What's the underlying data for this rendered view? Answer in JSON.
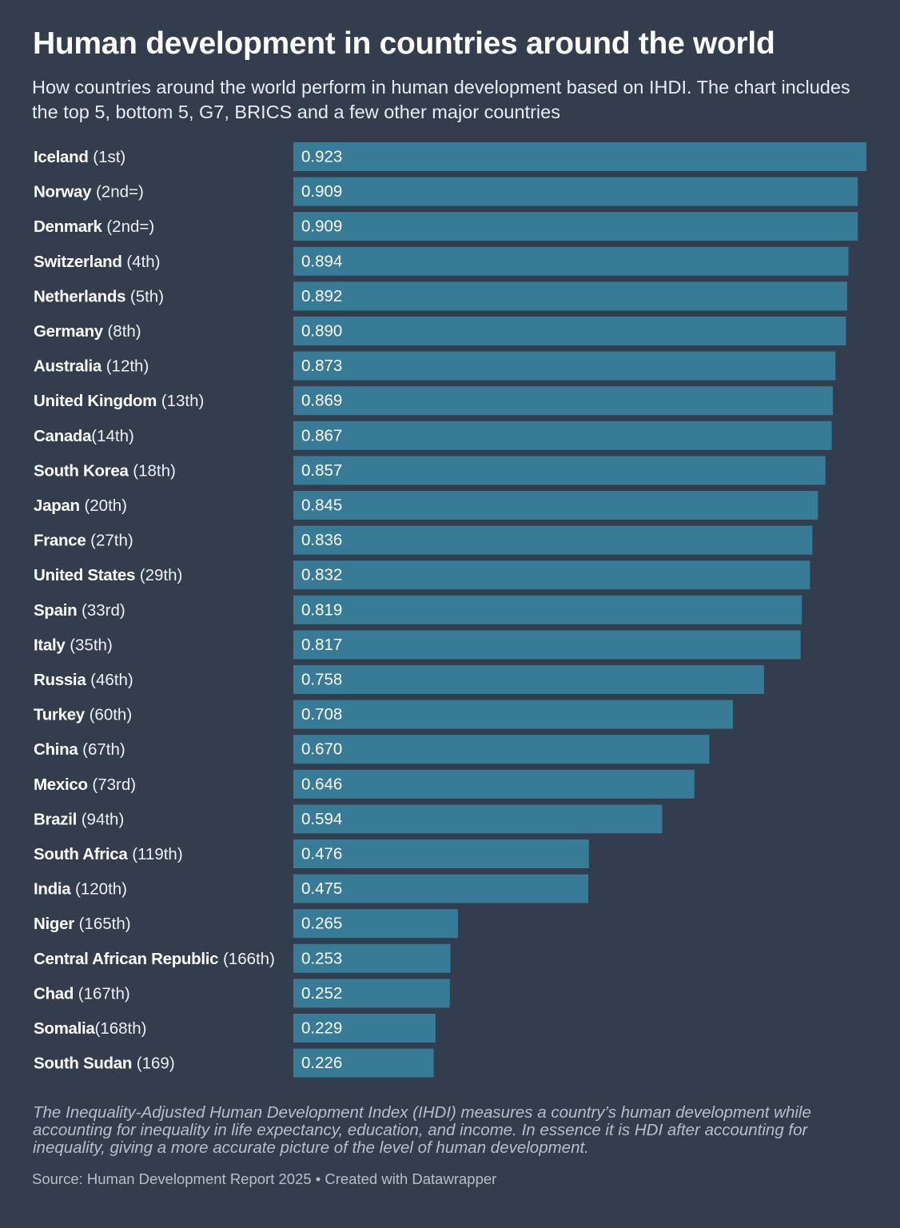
{
  "header": {
    "title": "Human development in countries around the world",
    "subtitle": "How countries around the world perform in human development based on IHDI. The chart includes the top 5, bottom 5, G7, BRICS and a few other major countries"
  },
  "chart_data": {
    "type": "bar",
    "orientation": "horizontal",
    "categories": [
      {
        "name": "Iceland",
        "suffix": " (1st)"
      },
      {
        "name": "Norway",
        "suffix": " (2nd=)"
      },
      {
        "name": "Denmark",
        "suffix": " (2nd=)"
      },
      {
        "name": "Switzerland",
        "suffix": " (4th)"
      },
      {
        "name": "Netherlands",
        "suffix": " (5th)"
      },
      {
        "name": "Germany",
        "suffix": " (8th)"
      },
      {
        "name": "Australia",
        "suffix": " (12th)"
      },
      {
        "name": "United Kingdom",
        "suffix": " (13th)"
      },
      {
        "name": "Canada",
        "suffix": "(14th)"
      },
      {
        "name": "South Korea",
        "suffix": " (18th)"
      },
      {
        "name": "Japan",
        "suffix": " (20th)"
      },
      {
        "name": "France",
        "suffix": " (27th)"
      },
      {
        "name": "United States",
        "suffix": " (29th)"
      },
      {
        "name": "Spain",
        "suffix": " (33rd)"
      },
      {
        "name": "Italy",
        "suffix": " (35th)"
      },
      {
        "name": "Russia",
        "suffix": " (46th)"
      },
      {
        "name": "Turkey",
        "suffix": " (60th)"
      },
      {
        "name": "China",
        "suffix": " (67th)"
      },
      {
        "name": "Mexico",
        "suffix": " (73rd)"
      },
      {
        "name": "Brazil",
        "suffix": " (94th)"
      },
      {
        "name": "South Africa",
        "suffix": " (119th)"
      },
      {
        "name": "India",
        "suffix": " (120th)"
      },
      {
        "name": "Niger",
        "suffix": " (165th)"
      },
      {
        "name": "Central African Republic",
        "suffix": " (166th)"
      },
      {
        "name": "Chad",
        "suffix": " (167th)"
      },
      {
        "name": "Somalia",
        "suffix": "(168th)"
      },
      {
        "name": "South Sudan",
        "suffix": " (169)"
      }
    ],
    "values": [
      0.923,
      0.909,
      0.909,
      0.894,
      0.892,
      0.89,
      0.873,
      0.869,
      0.867,
      0.857,
      0.845,
      0.836,
      0.832,
      0.819,
      0.817,
      0.758,
      0.708,
      0.67,
      0.646,
      0.594,
      0.476,
      0.475,
      0.265,
      0.253,
      0.252,
      0.229,
      0.226
    ],
    "value_labels": [
      "0.923",
      "0.909",
      "0.909",
      "0.894",
      "0.892",
      "0.890",
      "0.873",
      "0.869",
      "0.867",
      "0.857",
      "0.845",
      "0.836",
      "0.832",
      "0.819",
      "0.817",
      "0.758",
      "0.708",
      "0.670",
      "0.646",
      "0.594",
      "0.476",
      "0.475",
      "0.265",
      "0.253",
      "0.252",
      "0.229",
      "0.226"
    ],
    "xlim": [
      0,
      0.923
    ],
    "bar_color": "#377b96",
    "background_color": "#333d4e",
    "grid": false,
    "legend": "none"
  },
  "footer": {
    "note": "The Inequality-Adjusted Human Development Index (IHDI) measures a country’s human development while accounting for inequality in life expectancy, education, and income. In essence it is HDI after accounting for inequality, giving a more accurate picture of the level of human development.",
    "source": "Source: Human Development Report 2025 • Created with Datawrapper"
  }
}
